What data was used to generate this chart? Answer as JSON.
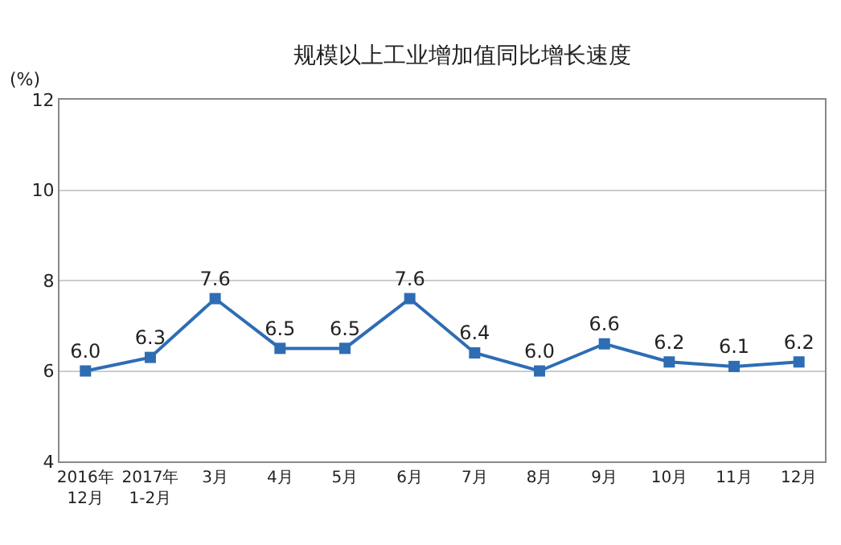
{
  "chart_data": {
    "type": "line",
    "title": "规模以上工业增加值同比增长速度",
    "ylabel": "(%)",
    "categories": [
      "2016年\n12月",
      "2017年\n1-2月",
      "3月",
      "4月",
      "5月",
      "6月",
      "7月",
      "8月",
      "9月",
      "10月",
      "11月",
      "12月"
    ],
    "series": [
      {
        "color": "#2e6db4",
        "values": [
          6.0,
          6.3,
          7.6,
          6.5,
          6.5,
          7.6,
          6.4,
          6.0,
          6.6,
          6.2,
          6.1,
          6.2
        ],
        "value_labels": [
          "6.0",
          "6.3",
          "7.6",
          "6.5",
          "6.5",
          "7.6",
          "6.4",
          "6.0",
          "6.6",
          "6.2",
          "6.1",
          "6.2"
        ]
      }
    ],
    "ylim": [
      4,
      12
    ],
    "yticks": [
      4,
      6,
      8,
      10,
      12
    ],
    "grid": "y",
    "marker": "square",
    "line_style": "solid"
  }
}
